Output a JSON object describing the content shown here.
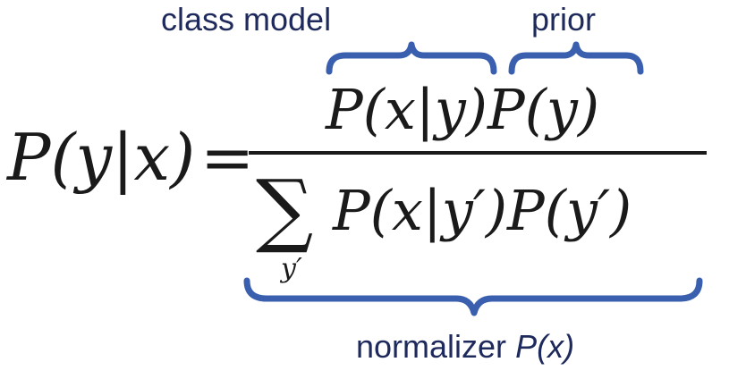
{
  "colors": {
    "annotation": "#1f2a5c",
    "brace": "#3a5fae",
    "math": "#1a1a1a"
  },
  "annotations": {
    "class_model": "class model",
    "prior": "prior",
    "normalizer_prefix": "normalizer ",
    "normalizer_math": "P(x)"
  },
  "formula": {
    "lhs": "P(y|x)",
    "equals": "=",
    "numerator": "P(x|y)P(y)",
    "summation": "∑",
    "summation_index": "y′",
    "denominator": "P(x|y′)P(y′)"
  }
}
